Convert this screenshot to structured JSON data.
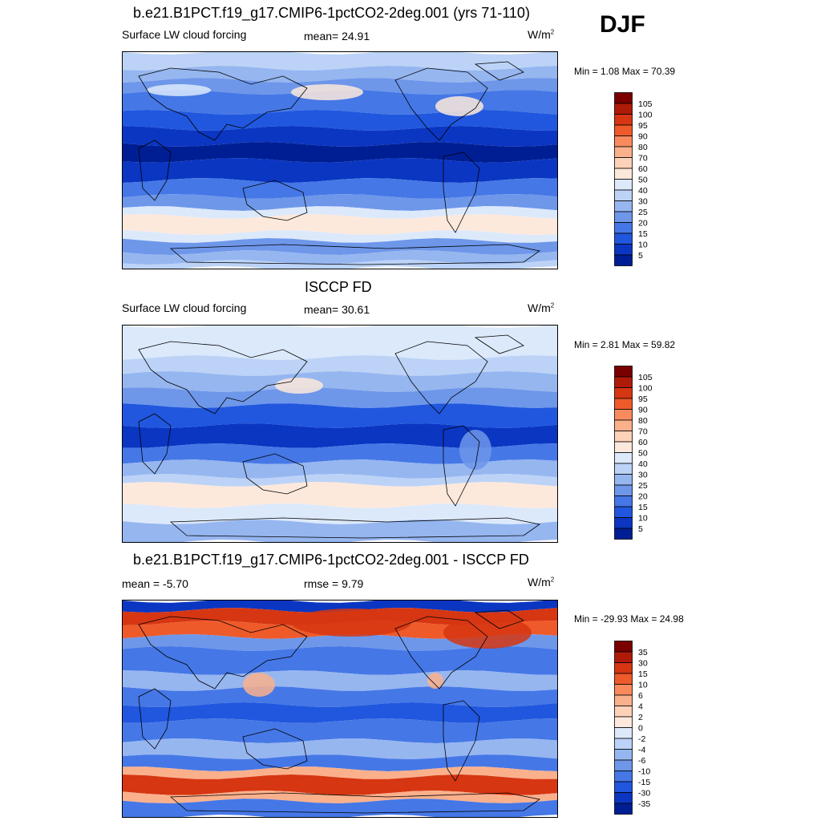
{
  "season_label": "DJF",
  "panels": [
    {
      "title": "b.e21.B1PCT.f19_g17.CMIP6-1pctCO2-2deg.001 (yrs 71-110)",
      "left_label": "Surface LW cloud forcing",
      "center_label": "mean=  24.91",
      "units": "W/m",
      "units_sup": "2",
      "minmax": "Min =   1.08 Max =  70.39",
      "colorbar": {
        "labels": [
          "105",
          "100",
          "95",
          "90",
          "80",
          "70",
          "60",
          "50",
          "40",
          "30",
          "25",
          "20",
          "15",
          "10",
          "5"
        ],
        "colors": [
          "#7a0000",
          "#b01a08",
          "#d63612",
          "#ef5a2a",
          "#f98a5e",
          "#fbb08c",
          "#fdd2b8",
          "#fde9dc",
          "#dce9fb",
          "#bcd3f7",
          "#96b6f0",
          "#6e97ea",
          "#4577e6",
          "#2057de",
          "#0a36c2",
          "#001e94"
        ]
      },
      "map_style": "model"
    },
    {
      "title": "ISCCP FD",
      "left_label": "Surface LW cloud forcing",
      "center_label": "mean=  30.61",
      "units": "W/m",
      "units_sup": "2",
      "minmax": "Min =   2.81 Max =  59.82",
      "colorbar": {
        "labels": [
          "105",
          "100",
          "95",
          "90",
          "80",
          "70",
          "60",
          "50",
          "40",
          "30",
          "25",
          "20",
          "15",
          "10",
          "5"
        ],
        "colors": [
          "#7a0000",
          "#b01a08",
          "#d63612",
          "#ef5a2a",
          "#f98a5e",
          "#fbb08c",
          "#fdd2b8",
          "#fde9dc",
          "#dce9fb",
          "#bcd3f7",
          "#96b6f0",
          "#6e97ea",
          "#4577e6",
          "#2057de",
          "#0a36c2",
          "#001e94"
        ]
      },
      "map_style": "obs"
    },
    {
      "title": "b.e21.B1PCT.f19_g17.CMIP6-1pctCO2-2deg.001 - ISCCP FD",
      "left_label": "mean =  -5.70",
      "center_label": "rmse =   9.79",
      "units": "W/m",
      "units_sup": "2",
      "minmax": "Min = -29.93 Max =  24.98",
      "colorbar": {
        "labels": [
          "35",
          "30",
          "15",
          "10",
          "6",
          "4",
          "2",
          "0",
          "-2",
          "-4",
          "-6",
          "-10",
          "-15",
          "-30",
          "-35"
        ],
        "colors": [
          "#7a0000",
          "#b01a08",
          "#d63612",
          "#ef5a2a",
          "#f98a5e",
          "#fbb08c",
          "#fdd2b8",
          "#fde9dc",
          "#dce9fb",
          "#bcd3f7",
          "#96b6f0",
          "#6e97ea",
          "#4577e6",
          "#2057de",
          "#0a36c2",
          "#001e94"
        ]
      },
      "map_style": "diff"
    }
  ]
}
